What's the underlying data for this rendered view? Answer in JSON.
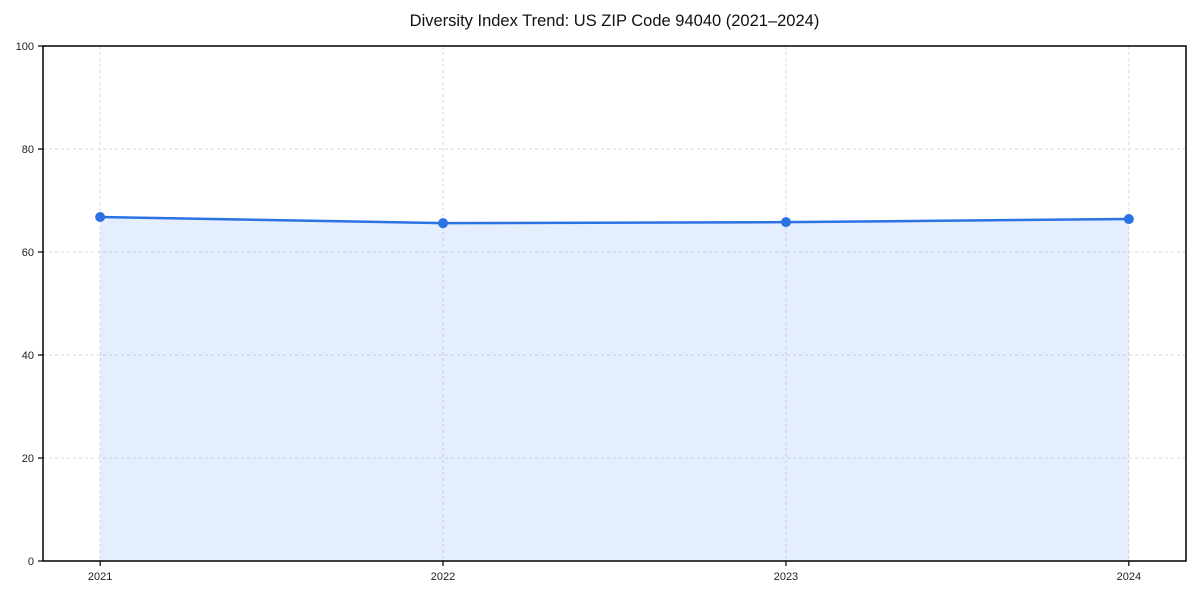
{
  "title": "Diversity Index Trend: US ZIP Code 94040 (2021–2024)",
  "colors": {
    "line": "#2b72e3",
    "marker": "#2b72e3",
    "fill_rgba": "rgba(43,114,227,0.12)",
    "grid": "#d9d9d9",
    "axis": "#000000",
    "tick_text": "#222222",
    "background": "#ffffff"
  },
  "chart_data": {
    "type": "area",
    "categories": [
      "2021",
      "2022",
      "2023",
      "2024"
    ],
    "series": [
      {
        "name": "Diversity Index",
        "values": [
          66.8,
          65.6,
          65.8,
          66.4
        ]
      }
    ],
    "title": "Diversity Index Trend: US ZIP Code 94040 (2021–2024)",
    "xlabel": "",
    "ylabel": "",
    "ylim": [
      0,
      100
    ],
    "yticks": [
      0,
      20,
      40,
      60,
      80,
      100
    ],
    "grid": true,
    "grid_style": "dashed",
    "legend": "none",
    "markers": true,
    "fill_to_zero": true
  }
}
